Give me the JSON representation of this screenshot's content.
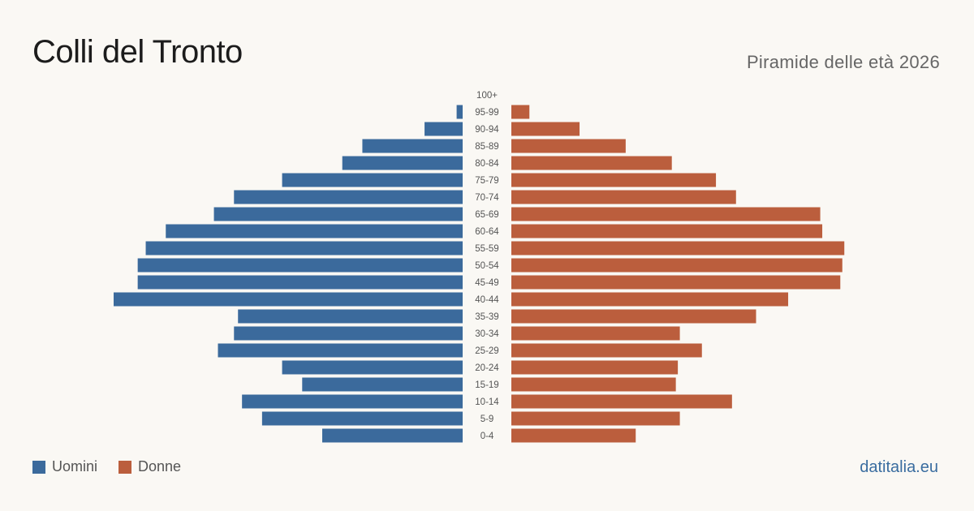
{
  "title": "Colli del Tronto",
  "subtitle": "Piramide delle età 2026",
  "source": "datitalia.eu",
  "colors": {
    "male": "#3b6a9c",
    "female": "#bb5e3d"
  },
  "chart_data": {
    "type": "bar",
    "orientation": "horizontal-pyramid",
    "categories": [
      "100+",
      "95-99",
      "90-94",
      "85-89",
      "80-84",
      "75-79",
      "70-74",
      "65-69",
      "60-64",
      "55-59",
      "50-54",
      "45-49",
      "40-44",
      "35-39",
      "30-34",
      "25-29",
      "20-24",
      "15-19",
      "10-14",
      "5-9",
      "0-4"
    ],
    "series": [
      {
        "name": "Uomini",
        "values": [
          0,
          3,
          19,
          50,
          60,
          90,
          114,
          124,
          148,
          158,
          162,
          162,
          174,
          112,
          114,
          122,
          90,
          80,
          110,
          100,
          70
        ]
      },
      {
        "name": "Donne",
        "values": [
          0,
          9,
          34,
          57,
          80,
          102,
          112,
          154,
          155,
          166,
          165,
          164,
          138,
          122,
          84,
          95,
          83,
          82,
          110,
          84,
          62
        ]
      }
    ],
    "legend": "bottom-left",
    "grid": false
  }
}
